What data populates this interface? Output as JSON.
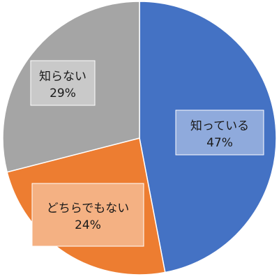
{
  "chart_data": {
    "type": "pie",
    "title": "",
    "start": "12 o'clock, clockwise",
    "slices": [
      {
        "label": "知っている",
        "value": 47,
        "value_text": "47%",
        "color": "#4472c4",
        "label_box_color": "#8faadc"
      },
      {
        "label": "どちらでもない",
        "value": 24,
        "value_text": "24%",
        "color": "#ed7d31",
        "label_box_color": "#f4b183"
      },
      {
        "label": "知らない",
        "value": 29,
        "value_text": "29%",
        "color": "#a5a5a5",
        "label_box_color": "#c9c9c9"
      }
    ]
  }
}
